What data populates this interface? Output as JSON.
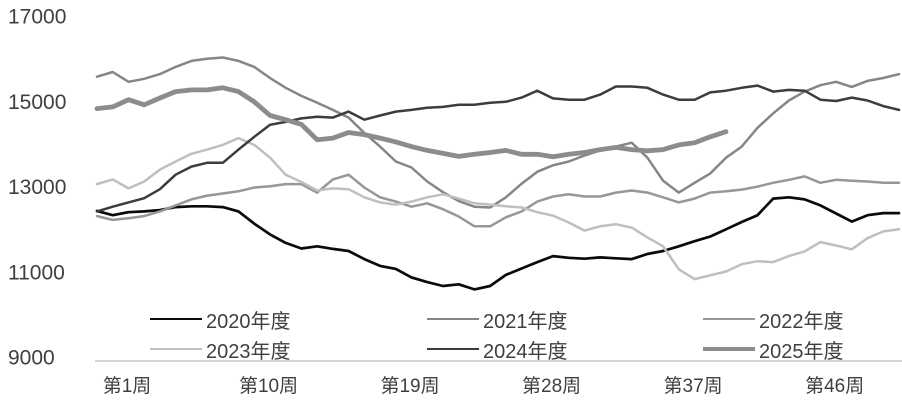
{
  "chart_data": {
    "type": "line",
    "title": "",
    "xlabel": "",
    "ylabel": "",
    "grid": false,
    "legend_position": "bottom",
    "background_color": "#ffffff",
    "axis_line_color": "#c8c8c8",
    "text_color": "#3f3f3f",
    "x_axis": {
      "total_weeks": 52,
      "tick_labels": [
        {
          "label": "第1周",
          "week": 1
        },
        {
          "label": "第10周",
          "week": 10
        },
        {
          "label": "第19周",
          "week": 19
        },
        {
          "label": "第28周",
          "week": 28
        },
        {
          "label": "第37周",
          "week": 37
        },
        {
          "label": "第46周",
          "week": 46
        }
      ]
    },
    "y_axis": {
      "ticks": [
        17000,
        15000,
        13000,
        11000,
        9000
      ],
      "ylim": [
        9000,
        17000
      ]
    },
    "series": [
      {
        "name": "2020年度",
        "color": "#0a0a0a",
        "line_width": 2.7,
        "values": [
          12450,
          12350,
          12420,
          12440,
          12470,
          12540,
          12560,
          12560,
          12540,
          12440,
          12150,
          11900,
          11700,
          11570,
          11620,
          11560,
          11510,
          11320,
          11160,
          11090,
          10890,
          10780,
          10690,
          10730,
          10610,
          10690,
          10950,
          11100,
          11250,
          11390,
          11350,
          11330,
          11360,
          11340,
          11320,
          11440,
          11510,
          11620,
          11740,
          11850,
          12020,
          12190,
          12350,
          12740,
          12770,
          12720,
          12580,
          12390,
          12200,
          12350,
          12400,
          12400
        ]
      },
      {
        "name": "2021年度",
        "color": "#868686",
        "line_width": 2.5,
        "values": [
          15600,
          15710,
          15480,
          15550,
          15660,
          15830,
          15970,
          16020,
          16050,
          15970,
          15830,
          15570,
          15340,
          15150,
          14990,
          14820,
          14640,
          14280,
          13960,
          13610,
          13470,
          13140,
          12890,
          12680,
          12550,
          12530,
          12770,
          13090,
          13370,
          13520,
          13610,
          13750,
          13870,
          13960,
          14050,
          13700,
          13160,
          12880,
          13110,
          13330,
          13700,
          13960,
          14400,
          14740,
          15040,
          15250,
          15400,
          15480,
          15360,
          15500,
          15570,
          15660
        ]
      },
      {
        "name": "2022年度",
        "color": "#979797",
        "line_width": 2.5,
        "values": [
          12330,
          12240,
          12280,
          12330,
          12440,
          12580,
          12720,
          12810,
          12860,
          12910,
          13000,
          13030,
          13080,
          13080,
          12880,
          13190,
          13300,
          13000,
          12770,
          12670,
          12550,
          12630,
          12490,
          12320,
          12090,
          12090,
          12300,
          12440,
          12670,
          12790,
          12840,
          12790,
          12790,
          12880,
          12930,
          12880,
          12770,
          12650,
          12740,
          12880,
          12910,
          12950,
          13020,
          13110,
          13180,
          13260,
          13110,
          13180,
          13160,
          13140,
          13110,
          13110
        ]
      },
      {
        "name": "2023年度",
        "color": "#bfbfbf",
        "line_width": 2.5,
        "values": [
          13080,
          13190,
          12980,
          13140,
          13420,
          13610,
          13790,
          13890,
          14000,
          14160,
          14000,
          13700,
          13300,
          13130,
          12930,
          12980,
          12960,
          12770,
          12650,
          12600,
          12670,
          12770,
          12840,
          12740,
          12630,
          12600,
          12560,
          12530,
          12420,
          12340,
          12180,
          11990,
          12090,
          12140,
          12060,
          11830,
          11620,
          11080,
          10850,
          10940,
          11030,
          11200,
          11270,
          11250,
          11390,
          11500,
          11720,
          11640,
          11550,
          11810,
          11970,
          12020
        ]
      },
      {
        "name": "2024年度",
        "color": "#3c3c3c",
        "line_width": 2.5,
        "values": [
          12440,
          12550,
          12650,
          12750,
          12960,
          13300,
          13490,
          13580,
          13580,
          13890,
          14190,
          14470,
          14540,
          14620,
          14660,
          14640,
          14780,
          14590,
          14690,
          14780,
          14820,
          14870,
          14890,
          14940,
          14940,
          14990,
          15010,
          15110,
          15270,
          15090,
          15060,
          15060,
          15180,
          15370,
          15370,
          15340,
          15180,
          15060,
          15060,
          15230,
          15270,
          15340,
          15390,
          15250,
          15290,
          15270,
          15060,
          15030,
          15110,
          15040,
          14910,
          14820
        ]
      },
      {
        "name": "2025年度",
        "color": "#8c8c8c",
        "line_width": 4.8,
        "values": [
          14850,
          14890,
          15060,
          14940,
          15100,
          15250,
          15290,
          15290,
          15340,
          15250,
          15010,
          14690,
          14590,
          14480,
          14120,
          14160,
          14290,
          14240,
          14160,
          14070,
          13960,
          13870,
          13800,
          13730,
          13780,
          13820,
          13870,
          13780,
          13780,
          13720,
          13780,
          13820,
          13890,
          13940,
          13890,
          13860,
          13890,
          14000,
          14050,
          14190,
          14310
        ]
      }
    ]
  },
  "legend": {
    "items": [
      "2020年度",
      "2021年度",
      "2022年度",
      "2023年度",
      "2024年度",
      "2025年度"
    ]
  }
}
